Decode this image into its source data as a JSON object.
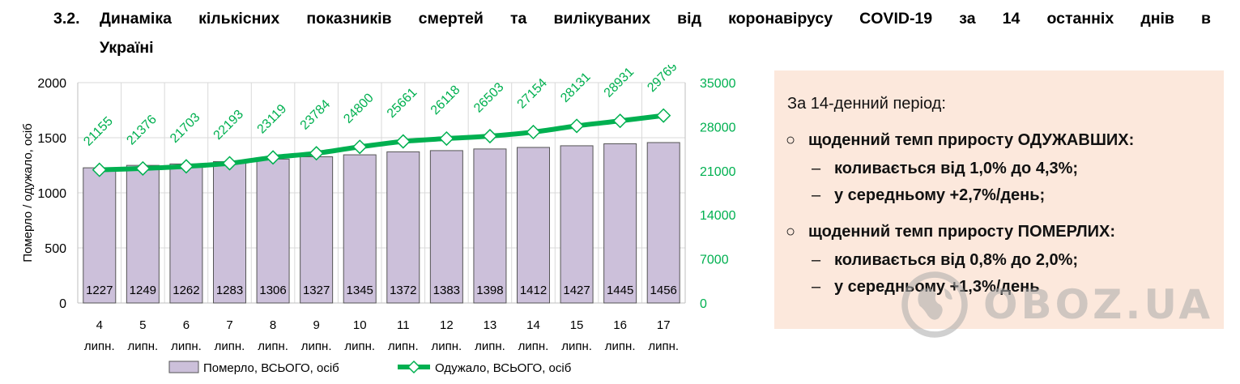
{
  "heading": {
    "number": "3.2.",
    "line1": "Динаміка кількісних показників смертей та вилікуваних від коронавірусу COVID-19 за 14 останніх днів в",
    "line2": "Україні"
  },
  "chart_data": {
    "type": "bar",
    "categories": [
      "4",
      "5",
      "6",
      "7",
      "8",
      "9",
      "10",
      "11",
      "12",
      "13",
      "14",
      "15",
      "16",
      "17"
    ],
    "category_sublabel": "липн.",
    "series": [
      {
        "name": "Померло, ВСЬОГО, осіб",
        "type": "bar",
        "axis": "left",
        "color": "#ccc0da",
        "values": [
          1227,
          1249,
          1262,
          1283,
          1306,
          1327,
          1345,
          1372,
          1383,
          1398,
          1412,
          1427,
          1445,
          1456
        ]
      },
      {
        "name": "Одужало, ВСЬОГО, осіб",
        "type": "line",
        "axis": "right",
        "color": "#00b050",
        "marker": "diamond",
        "values": [
          21155,
          21376,
          21703,
          22193,
          23119,
          23784,
          24800,
          25661,
          26118,
          26503,
          27154,
          28131,
          28931,
          29769
        ]
      }
    ],
    "ylabel": "Померло / одужало, осіб",
    "ylim": [
      0,
      2000
    ],
    "yticks": [
      "0",
      "500",
      "1000",
      "1500",
      "2000"
    ],
    "y2lim": [
      0,
      35000
    ],
    "y2ticks": [
      "0",
      "7000",
      "14000",
      "21000",
      "28000",
      "35000"
    ],
    "grid": true,
    "legend": "bottom"
  },
  "panel": {
    "intro": "За 14-денний період:",
    "bullet1": "щоденний темп приросту ОДУЖАВШИХ:",
    "bullet1_sub1": "коливається від 1,0% до 4,3%;",
    "bullet1_sub2": "у середньому +2,7%/день;",
    "bullet2": "щоденний темп приросту ПОМЕРЛИХ:",
    "bullet2_sub1": "коливається від 0,8% до 2,0%;",
    "bullet2_sub2": "у середньому +1,3%/день",
    "bullet_glyph": "○",
    "dash_glyph": "–"
  },
  "watermark": {
    "text": "OBOZ.UA",
    "icon": "globe-icon"
  }
}
